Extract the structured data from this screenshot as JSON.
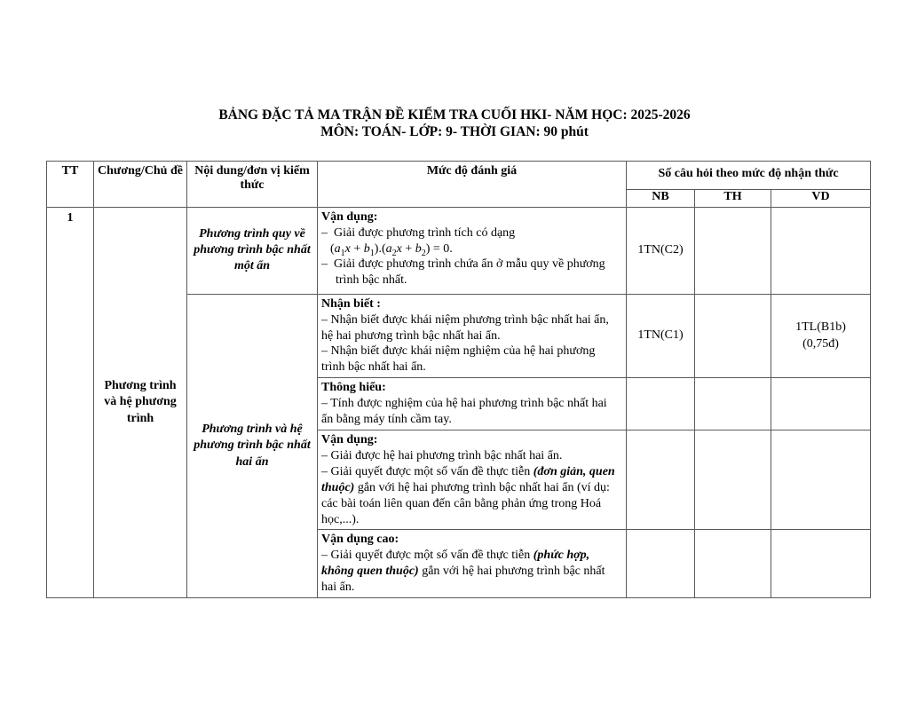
{
  "title": {
    "line1": "BẢNG ĐẶC TẢ MA TRẬN ĐỀ KIỂM TRA CUỐI HKI- NĂM HỌC: 2025-2026",
    "line2": "MÔN: TOÁN- LỚP: 9- THỜI GIAN: 90 phút"
  },
  "table": {
    "headers": {
      "tt": "TT",
      "chapter": "Chương/Chủ đề",
      "content": "Nội dung/đơn vị kiểm thức",
      "assessment": "Mức độ đánh giá",
      "questions": "Số câu hỏi theo mức độ nhận thức",
      "levels": [
        "NB",
        "TH",
        "VD"
      ]
    },
    "body": {
      "tt": "1",
      "chapter": "Phương trình và hệ phương trình",
      "topics": [
        {
          "name": "Phương trình quy về phương trình bậc  nhất một ẩn",
          "rows": [
            {
              "paragraphs": [
                {
                  "segs": [
                    {
                      "t": "Vận dụng:",
                      "b": true
                    }
                  ]
                },
                {
                  "segs": [
                    {
                      "t": "–  Giải được phương trình tích có dạng"
                    }
                  ]
                },
                {
                  "cls": "formula",
                  "segs": [
                    {
                      "t": "("
                    },
                    {
                      "t": "a",
                      "i": true
                    },
                    {
                      "t": "1",
                      "sub": true
                    },
                    {
                      "t": "x",
                      "i": true
                    },
                    {
                      "t": " + "
                    },
                    {
                      "t": "b",
                      "i": true
                    },
                    {
                      "t": "1",
                      "sub": true
                    },
                    {
                      "t": ").("
                    },
                    {
                      "t": "a",
                      "i": true
                    },
                    {
                      "t": "2",
                      "sub": true
                    },
                    {
                      "t": "x",
                      "i": true
                    },
                    {
                      "t": " + "
                    },
                    {
                      "t": "b",
                      "i": true
                    },
                    {
                      "t": "2",
                      "sub": true
                    },
                    {
                      "t": ") = 0."
                    }
                  ]
                },
                {
                  "cls": "hang",
                  "segs": [
                    {
                      "t": "–  Giải được phương trình chứa ẩn ở mẫu quy về phương trình bậc nhất."
                    }
                  ]
                }
              ],
              "nb": "1TN(C2)",
              "th": "",
              "vd": ""
            }
          ]
        },
        {
          "name": "Phương trình và hệ phương trình bậc nhất\nhai ẩn",
          "rows": [
            {
              "paragraphs": [
                {
                  "segs": [
                    {
                      "t": "Nhận biết :",
                      "b": true
                    }
                  ]
                },
                {
                  "segs": [
                    {
                      "t": "– Nhận biết được khái niệm phương trình bậc nhất hai ẩn, hệ hai phương trình bậc nhất hai ẩn."
                    }
                  ]
                },
                {
                  "segs": [
                    {
                      "t": "– Nhận biết được khái niệm nghiệm của hệ hai phương trình bậc nhất hai ẩn."
                    }
                  ]
                }
              ],
              "nb": "1TN(C1)",
              "th": "",
              "vd": "1TL(B1b)\n(0,75đ)"
            },
            {
              "paragraphs": [
                {
                  "segs": [
                    {
                      "t": "Thông hiểu:",
                      "b": true
                    }
                  ]
                },
                {
                  "segs": [
                    {
                      "t": "– Tính được nghiệm của hệ hai phương trình bậc nhất hai ẩn bằng máy tính cầm tay."
                    }
                  ]
                }
              ],
              "nb": "",
              "th": "",
              "vd": ""
            },
            {
              "paragraphs": [
                {
                  "segs": [
                    {
                      "t": "Vận dụng:",
                      "b": true
                    }
                  ]
                },
                {
                  "segs": [
                    {
                      "t": "– Giải được hệ hai phương trình bậc nhất hai ẩn."
                    }
                  ]
                },
                {
                  "segs": [
                    {
                      "t": "– Giải quyết được một số vấn đề thực tiễn "
                    },
                    {
                      "t": "(đơn giản, quen thuộc)",
                      "b": true,
                      "i": true
                    },
                    {
                      "t": " gắn với hệ hai phương trình bậc nhất hai ẩn (ví dụ: các bài toán liên quan đến cân bằng phản ứng trong Hoá học,...)."
                    }
                  ]
                }
              ],
              "nb": "",
              "th": "",
              "vd": ""
            },
            {
              "paragraphs": [
                {
                  "segs": [
                    {
                      "t": "Vận dụng cao:",
                      "b": true
                    }
                  ]
                },
                {
                  "segs": [
                    {
                      "t": "– Giải quyết được một số vấn đề thực tiễn "
                    },
                    {
                      "t": "(phức hợp, không quen thuộc)",
                      "b": true,
                      "i": true
                    },
                    {
                      "t": " gắn với hệ hai phương trình bậc nhất hai ẩn."
                    }
                  ]
                }
              ],
              "nb": "",
              "th": "",
              "vd": ""
            }
          ]
        }
      ]
    }
  }
}
